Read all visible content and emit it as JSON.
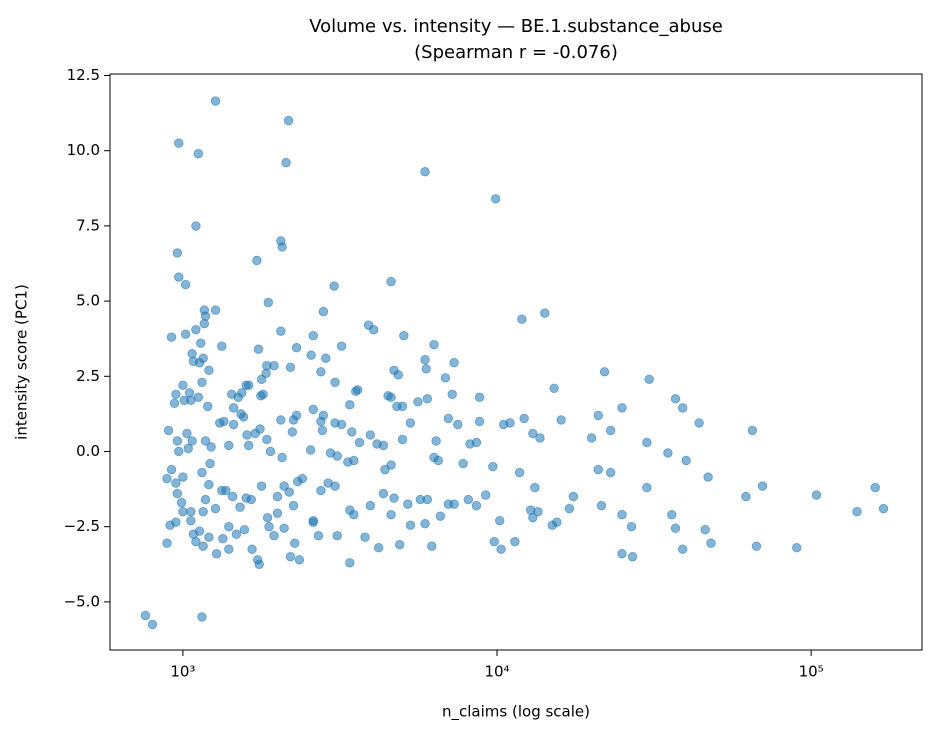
{
  "chart_data": {
    "type": "scatter",
    "title": "Volume vs. intensity — BE.1.substance_abuse",
    "subtitle": "(Spearman r = -0.076)",
    "x_label": "n_claims (log scale)",
    "y_label": "intensity score (PC1)",
    "x_log_scale": true,
    "color": "#1f77b4",
    "xlim": [
      586,
      225400
    ],
    "ylim": [
      -6.6,
      12.55
    ],
    "xticks": [
      {
        "value": 1000,
        "label": "10³"
      },
      {
        "value": 10000,
        "label": "10⁴"
      },
      {
        "value": 100000,
        "label": "10⁵"
      }
    ],
    "yticks": [
      {
        "value": -5,
        "label": "−5.0"
      },
      {
        "value": -2.5,
        "label": "−2.5"
      },
      {
        "value": 0,
        "label": "0.0"
      },
      2.5,
      {
        "value": 5,
        "label": "5.0"
      },
      7.5,
      {
        "value": 10,
        "label": "10.0"
      },
      12.5
    ],
    "x": [
      760,
      800,
      1150,
      1270,
      2170,
      2130,
      5900,
      9900,
      970,
      1120,
      1100,
      960,
      970,
      1020,
      1720,
      2050,
      2070,
      1870,
      3030,
      4600,
      2800,
      1170,
      1270,
      1180,
      1170,
      1100,
      1020,
      920,
      1140,
      1330,
      2050,
      3900,
      4050,
      6300,
      5050,
      12000,
      14200,
      2300,
      2600,
      2850,
      3200,
      1070,
      1080,
      1130,
      1160,
      1210,
      1740,
      1850,
      1950,
      1840,
      2200,
      2560,
      2750,
      3050,
      4700,
      4850,
      5900,
      5950,
      7300,
      6850,
      7200,
      8800,
      15200,
      22000,
      30500,
      37000,
      39000,
      44000,
      65000,
      1000,
      1050,
      1150,
      950,
      940,
      1010,
      1060,
      1120,
      1200,
      1430,
      1450,
      1500,
      1540,
      1590,
      1620,
      1780,
      1800,
      1770,
      1530,
      1560,
      1310,
      1350,
      1450,
      1600,
      1760,
      1850,
      2050,
      2250,
      2300,
      2230,
      2600,
      2750,
      2800,
      2780,
      3050,
      3200,
      3400,
      3550,
      3600,
      3450,
      3650,
      3950,
      4150,
      4350,
      4500,
      4600,
      5000,
      4800,
      5000,
      5300,
      5600,
      6000,
      6400,
      7000,
      7500,
      8200,
      8600,
      8800,
      10500,
      11000,
      12200,
      13000,
      13700,
      16000,
      20000,
      21000,
      23000,
      25000,
      30000,
      35000,
      40000,
      900,
      960,
      970,
      1030,
      1040,
      1070,
      1180,
      1230,
      1400,
      1620,
      1700,
      1900,
      2070,
      2550,
      2950,
      3100,
      3350,
      3500,
      4400,
      4600,
      6300,
      6500,
      7800,
      9700,
      11800,
      13200,
      17500,
      21000,
      23000,
      30000,
      47000,
      62000,
      70000,
      104000,
      160000,
      140000,
      170000,
      890,
      920,
      950,
      990,
      960,
      1000,
      1060,
      1150,
      1220,
      1210,
      1180,
      1270,
      1330,
      1370,
      1440,
      1520,
      1590,
      1650,
      1780,
      1860,
      2000,
      2100,
      2180,
      2250,
      2320,
      2400,
      2750,
      2900,
      3050,
      3400,
      3950,
      4350,
      4700,
      5200,
      5700,
      6000,
      6600,
      7300,
      8100,
      9200,
      10200,
      12800,
      13500,
      15500,
      17000,
      21500,
      25000,
      26800,
      36000,
      37000,
      46000,
      890,
      910,
      950,
      1000,
      1060,
      1080,
      1100,
      1130,
      1160,
      1210,
      1280,
      1340,
      1400,
      1480,
      1570,
      1660,
      1730,
      1750,
      1880,
      1950,
      2100,
      2200,
      2270,
      2350,
      2600,
      2700,
      3100,
      3400,
      3800,
      4200,
      4900,
      5300,
      5900,
      6200,
      9800,
      10300,
      11400,
      13000,
      15000,
      25000,
      27000,
      39000,
      48000,
      67000,
      90000,
      1160,
      1400,
      2000,
      2600,
      3500,
      4600,
      7000,
      8600
    ],
    "values": [
      -5.45,
      -5.75,
      -5.5,
      11.65,
      11.0,
      9.6,
      9.3,
      8.4,
      10.25,
      9.9,
      7.5,
      6.6,
      5.8,
      5.55,
      6.35,
      7.0,
      6.8,
      4.95,
      5.5,
      5.65,
      4.65,
      4.7,
      4.7,
      4.5,
      4.25,
      4.05,
      3.9,
      3.8,
      3.6,
      3.5,
      4.0,
      4.2,
      4.05,
      3.55,
      3.85,
      4.4,
      4.6,
      3.45,
      3.85,
      3.1,
      3.5,
      3.25,
      3.0,
      2.95,
      3.1,
      2.7,
      3.4,
      2.85,
      2.85,
      2.6,
      2.8,
      3.2,
      2.65,
      2.3,
      2.7,
      2.55,
      3.05,
      2.75,
      2.95,
      2.45,
      1.9,
      1.8,
      2.1,
      2.65,
      2.4,
      1.75,
      1.45,
      0.95,
      0.7,
      2.2,
      1.95,
      2.3,
      1.9,
      1.6,
      1.7,
      1.7,
      1.8,
      1.5,
      1.9,
      1.45,
      1.8,
      1.95,
      2.2,
      2.2,
      2.4,
      1.9,
      1.85,
      1.25,
      1.15,
      0.95,
      1.0,
      0.9,
      0.55,
      0.75,
      0.4,
      1.05,
      1.05,
      1.2,
      0.65,
      1.4,
      1.0,
      1.2,
      0.7,
      0.95,
      0.9,
      1.55,
      2.0,
      2.05,
      0.65,
      0.3,
      0.55,
      0.25,
      0.2,
      1.85,
      1.8,
      1.5,
      1.5,
      0.4,
      0.95,
      1.65,
      1.75,
      0.35,
      1.1,
      0.9,
      0.25,
      0.3,
      1.0,
      0.9,
      0.95,
      1.1,
      0.6,
      0.45,
      1.05,
      0.45,
      1.2,
      0.7,
      1.45,
      0.3,
      -0.05,
      -0.3,
      0.7,
      0.35,
      0.0,
      0.6,
      0.1,
      0.35,
      0.35,
      0.15,
      0.2,
      0.2,
      0.6,
      0.0,
      -0.2,
      0.05,
      -0.05,
      -0.15,
      -0.35,
      -0.3,
      -0.6,
      -0.45,
      -0.2,
      -0.3,
      -0.4,
      -0.5,
      -0.7,
      -1.2,
      -1.5,
      -0.6,
      -0.7,
      -1.2,
      -0.85,
      -1.5,
      -1.15,
      -1.45,
      -1.2,
      -2.0,
      -1.9,
      -0.9,
      -0.6,
      -1.05,
      -1.7,
      -1.4,
      -0.85,
      -2.0,
      -0.7,
      -0.4,
      -1.1,
      -1.6,
      -1.9,
      -1.3,
      -1.3,
      -1.5,
      -1.85,
      -1.55,
      -1.6,
      -1.15,
      -2.2,
      -1.5,
      -1.15,
      -1.35,
      -1.8,
      -1.0,
      -0.9,
      -1.3,
      -1.05,
      -1.15,
      -1.95,
      -1.8,
      -1.4,
      -1.55,
      -1.75,
      -1.6,
      -1.6,
      -2.15,
      -1.75,
      -1.6,
      -1.45,
      -2.3,
      -1.95,
      -2.0,
      -2.35,
      -1.9,
      -1.8,
      -2.1,
      -2.5,
      -2.1,
      -2.55,
      -2.6,
      -3.05,
      -2.45,
      -2.35,
      -2.0,
      -2.3,
      -2.75,
      -3.0,
      -2.65,
      -3.15,
      -2.85,
      -3.4,
      -2.9,
      -3.25,
      -2.75,
      -2.6,
      -3.25,
      -3.6,
      -3.75,
      -2.5,
      -2.8,
      -2.55,
      -3.5,
      -3.05,
      -3.6,
      -2.35,
      -2.8,
      -2.8,
      -3.7,
      -2.85,
      -3.2,
      -3.1,
      -2.45,
      -2.4,
      -3.15,
      -3.0,
      -3.25,
      -3.0,
      -2.2,
      -2.45,
      -3.4,
      -3.5,
      -3.25,
      -3.05,
      -3.15,
      -3.2,
      -2.0,
      -2.5,
      -2.05,
      -2.3,
      -2.1,
      -2.1,
      -1.75,
      -1.8
    ]
  }
}
